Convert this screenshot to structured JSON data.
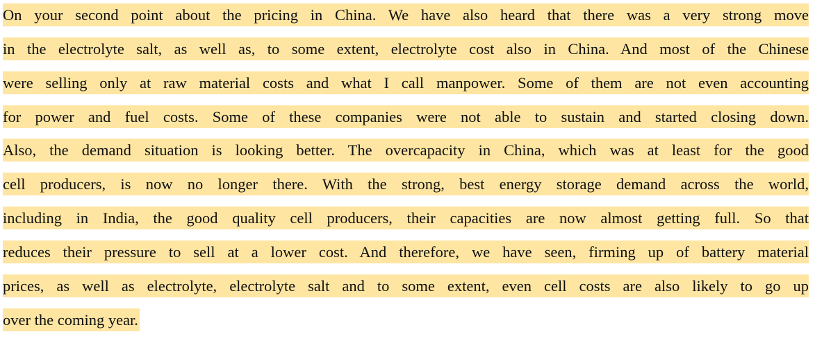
{
  "document": {
    "highlight_color": "#FEE5A2",
    "lines": [
      "On your second point about the pricing in China. We have also heard that there was a very strong move",
      "in the electrolyte salt, as well as, to some extent, electrolyte cost also in China. And most of the Chinese",
      "were selling only at raw material costs and what I call manpower. Some of them are not even accounting",
      "for power and fuel costs. Some of these companies were not able to sustain and started closing down.",
      "Also, the demand situation is looking better. The overcapacity in China, which was at least for the good",
      "cell producers, is now no longer there. With the strong, best energy storage demand across the world,",
      "including in India, the good quality cell producers, their capacities are now almost getting full. So that",
      "reduces their pressure to sell at a lower cost. And therefore, we have seen, firming up of battery material",
      "prices, as well as electrolyte, electrolyte salt and to some extent, even cell costs are also likely to go up",
      "over the coming year."
    ]
  }
}
